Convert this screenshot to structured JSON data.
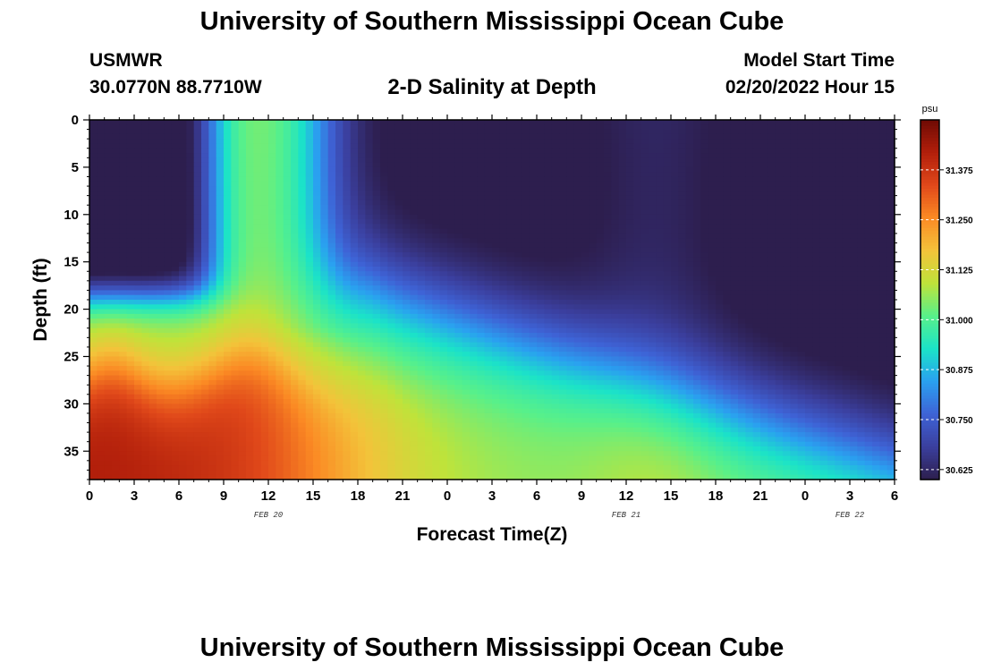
{
  "header": {
    "title": "University of Southern Mississippi Ocean Cube",
    "station": "USMWR",
    "coords": "30.0770N  88.7710W",
    "subtitle": "2-D Salinity at Depth",
    "model_start_label": "Model Start Time",
    "model_start_value": "02/20/2022 Hour 15"
  },
  "footer": {
    "title": "University of Southern Mississippi Ocean Cube"
  },
  "chart_data": {
    "type": "heatmap",
    "title": "2-D Salinity at Depth",
    "xlabel": "Forecast Time(Z)",
    "ylabel": "Depth (ft)",
    "units": "psu",
    "x_range": [
      0,
      54
    ],
    "y_range": [
      0,
      38
    ],
    "y_inverted": true,
    "x_ticks": [
      "0",
      "3",
      "6",
      "9",
      "12",
      "15",
      "18",
      "21",
      "0",
      "3",
      "6",
      "9",
      "12",
      "15",
      "18",
      "21",
      "0",
      "3",
      "6"
    ],
    "y_ticks": [
      "0",
      "5",
      "10",
      "15",
      "20",
      "25",
      "30",
      "35"
    ],
    "date_labels": [
      "FEB 20",
      "FEB 21",
      "FEB 22"
    ],
    "colorbar": {
      "min": 30.6,
      "max": 31.5,
      "ticks": [
        "30.625",
        "30.750",
        "30.875",
        "31.000",
        "31.125",
        "31.250",
        "31.375"
      ],
      "colors": [
        "#2d1e4e",
        "#3b3f9e",
        "#3e63d6",
        "#2aa0f0",
        "#1be3c8",
        "#58f08a",
        "#bfe33a",
        "#f3c33a",
        "#fb8a24",
        "#e0481a",
        "#b21f0b",
        "#6e0a04"
      ]
    },
    "grid": false,
    "approx_profile_notes": "estimated field: low salinity near surface at hours 0-8 and 17-54 (deepening toward end), high salinity (>31.3) at depths >25 ft during hours 0-15"
  }
}
